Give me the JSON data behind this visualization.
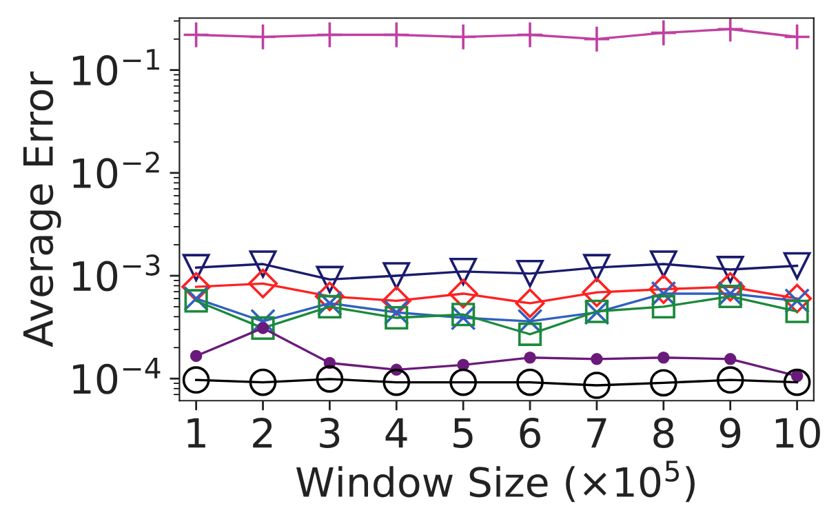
{
  "chart_data": {
    "type": "line",
    "xlabel": "Window Size (×10$^{5}$)",
    "ylabel": "Average Error",
    "log": "y",
    "x": [
      1,
      2,
      3,
      4,
      5,
      6,
      7,
      8,
      9,
      10
    ],
    "xlim": [
      0.75,
      10.25
    ],
    "xticks": [
      1,
      2,
      3,
      4,
      5,
      6,
      7,
      8,
      9,
      10
    ],
    "ylim": [
      6.1e-05,
      0.32
    ],
    "yticks": [
      {
        "value": 0.0001,
        "label": "10$^{−4}$"
      },
      {
        "value": 0.001,
        "label": "10$^{−3}$"
      },
      {
        "value": 0.01,
        "label": "10$^{−2}$"
      },
      {
        "value": 0.1,
        "label": "10$^{−1}$"
      }
    ],
    "grid": false,
    "legend": false,
    "line_style": "solid",
    "series": [
      {
        "color": "#c040a0",
        "marker": "plus",
        "values": [
          0.22,
          0.21,
          0.22,
          0.22,
          0.21,
          0.22,
          0.2,
          0.23,
          0.25,
          0.21
        ]
      },
      {
        "color": "#1a1a6e",
        "marker": "triangle_down",
        "values": [
          0.0012,
          0.0013,
          0.00092,
          0.001,
          0.0011,
          0.00105,
          0.0012,
          0.0013,
          0.00115,
          0.00125
        ]
      },
      {
        "color": "#ff2020",
        "marker": "diamond",
        "values": [
          0.00078,
          0.00084,
          0.00063,
          0.00057,
          0.00067,
          0.00054,
          0.00069,
          0.00074,
          0.00078,
          0.0006
        ]
      },
      {
        "color": "#3060c0",
        "marker": "cross",
        "values": [
          0.0006,
          0.00036,
          0.00054,
          0.00044,
          0.00039,
          0.00036,
          0.00044,
          0.00067,
          0.00067,
          0.00057
        ]
      },
      {
        "color": "#1a8a3a",
        "marker": "square",
        "values": [
          0.00057,
          0.00031,
          0.0005,
          0.00039,
          0.00042,
          0.00027,
          0.00045,
          0.0005,
          0.00063,
          0.00045
        ]
      },
      {
        "color": "#6a1a7a",
        "marker": "dot",
        "values": [
          0.000166,
          0.00031,
          0.000142,
          0.000122,
          0.000136,
          0.00016,
          0.000155,
          0.00016,
          0.000155,
          0.000106
        ]
      },
      {
        "color": "#000000",
        "marker": "circle",
        "values": [
          9.7e-05,
          9.2e-05,
          9.9e-05,
          9.2e-05,
          9.2e-05,
          9.2e-05,
          8.6e-05,
          9.1e-05,
          9.7e-05,
          9.2e-05
        ]
      }
    ]
  }
}
